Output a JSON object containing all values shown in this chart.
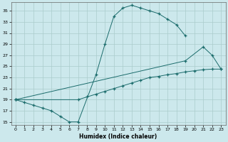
{
  "xlabel": "Humidex (Indice chaleur)",
  "bg_color": "#cce8ec",
  "grid_color": "#aacccc",
  "line_color": "#1a6b6b",
  "xlim": [
    -0.5,
    23.5
  ],
  "ylim": [
    14.5,
    36.5
  ],
  "yticks": [
    15,
    17,
    19,
    21,
    23,
    25,
    27,
    29,
    31,
    33,
    35
  ],
  "xticks": [
    0,
    1,
    2,
    3,
    4,
    5,
    6,
    7,
    8,
    9,
    10,
    11,
    12,
    13,
    14,
    15,
    16,
    17,
    18,
    19,
    20,
    21,
    22,
    23
  ],
  "line1_x": [
    0,
    1,
    2,
    3,
    4,
    5,
    6,
    7,
    9,
    10,
    11,
    12,
    13,
    14,
    15,
    16,
    17,
    18,
    19
  ],
  "line1_y": [
    19.0,
    18.5,
    18.0,
    17.5,
    17.0,
    16.0,
    15.0,
    15.0,
    23.5,
    29.0,
    34.0,
    35.5,
    36.0,
    35.5,
    35.0,
    34.5,
    33.5,
    32.5,
    30.5
  ],
  "line2_x": [
    0,
    19,
    21,
    22,
    23
  ],
  "line2_y": [
    19.0,
    26.0,
    28.5,
    27.0,
    24.5
  ],
  "line3_x": [
    0,
    7,
    8,
    9,
    10,
    11,
    12,
    13,
    14,
    15,
    16,
    17,
    18,
    19,
    20,
    21,
    22,
    23
  ],
  "line3_y": [
    19.0,
    19.0,
    19.5,
    20.0,
    20.5,
    21.0,
    21.5,
    22.0,
    22.5,
    23.0,
    23.2,
    23.5,
    23.7,
    24.0,
    24.2,
    24.4,
    24.5,
    24.5
  ]
}
